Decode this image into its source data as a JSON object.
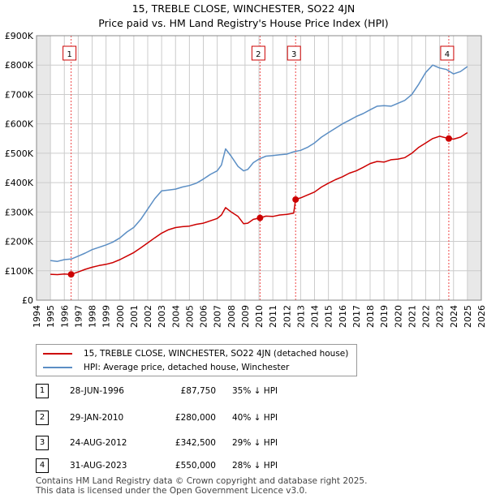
{
  "chart_data": {
    "type": "line",
    "title": "15, TREBLE CLOSE, WINCHESTER, SO22 4JN",
    "subtitle": "Price paid vs. HM Land Registry's House Price Index (HPI)",
    "xlabel": "",
    "ylabel": "",
    "xlim": [
      1994,
      2026
    ],
    "ylim": [
      0,
      900000
    ],
    "y_ticks": [
      0,
      100000,
      200000,
      300000,
      400000,
      500000,
      600000,
      700000,
      800000,
      900000
    ],
    "y_tick_labels": [
      "£0",
      "£100K",
      "£200K",
      "£300K",
      "£400K",
      "£500K",
      "£600K",
      "£700K",
      "£800K",
      "£900K"
    ],
    "x_ticks": [
      1994,
      1995,
      1996,
      1997,
      1998,
      1999,
      2000,
      2001,
      2002,
      2003,
      2004,
      2005,
      2006,
      2007,
      2008,
      2009,
      2010,
      2011,
      2012,
      2013,
      2014,
      2015,
      2016,
      2017,
      2018,
      2019,
      2020,
      2021,
      2022,
      2023,
      2024,
      2025,
      2026
    ],
    "x_tick_labels": [
      "1994",
      "1995",
      "1996",
      "1997",
      "1998",
      "1999",
      "2000",
      "2001",
      "2002",
      "2003",
      "2004",
      "2005",
      "2006",
      "2007",
      "2008",
      "2009",
      "2010",
      "2011",
      "2012",
      "2013",
      "2014",
      "2015",
      "2016",
      "2017",
      "2018",
      "2019",
      "2020",
      "2021",
      "2022",
      "2023",
      "2024",
      "2025",
      "2026"
    ],
    "grid": true,
    "shaded_ranges": [
      [
        1994,
        1995
      ],
      [
        2025.0,
        2026
      ]
    ],
    "series": [
      {
        "name": "15, TREBLE CLOSE, WINCHESTER, SO22 4JN (detached house)",
        "color": "#cc0000",
        "x": [
          1995.0,
          1995.5,
          1996.0,
          1996.49,
          1997.0,
          1997.5,
          1998.0,
          1998.5,
          1999.0,
          1999.5,
          2000.0,
          2000.5,
          2001.0,
          2001.5,
          2002.0,
          2002.5,
          2003.0,
          2003.5,
          2004.0,
          2004.5,
          2005.0,
          2005.5,
          2006.0,
          2006.5,
          2007.0,
          2007.3,
          2007.6,
          2008.0,
          2008.5,
          2008.9,
          2009.2,
          2009.6,
          2010.08,
          2010.5,
          2011.0,
          2011.5,
          2012.0,
          2012.5,
          2012.64,
          2013.0,
          2013.5,
          2014.0,
          2014.5,
          2015.0,
          2015.5,
          2016.0,
          2016.5,
          2017.0,
          2017.5,
          2018.0,
          2018.5,
          2019.0,
          2019.5,
          2020.0,
          2020.5,
          2021.0,
          2021.5,
          2022.0,
          2022.5,
          2023.0,
          2023.66,
          2024.0,
          2024.5,
          2025.0
        ],
        "values": [
          88000,
          87000,
          89000,
          87750,
          96000,
          105000,
          112000,
          118000,
          122000,
          128000,
          138000,
          150000,
          162000,
          178000,
          195000,
          212000,
          228000,
          240000,
          247000,
          250000,
          252000,
          258000,
          262000,
          270000,
          278000,
          290000,
          315000,
          300000,
          285000,
          260000,
          262000,
          275000,
          280000,
          286000,
          285000,
          290000,
          292000,
          296000,
          342500,
          348000,
          358000,
          368000,
          385000,
          398000,
          410000,
          420000,
          432000,
          440000,
          452000,
          465000,
          472000,
          470000,
          478000,
          480000,
          485000,
          500000,
          520000,
          535000,
          550000,
          558000,
          550000,
          548000,
          555000,
          570000
        ]
      },
      {
        "name": "HPI: Average price, detached house, Winchester",
        "color": "#5b8ec4",
        "x": [
          1995.0,
          1995.5,
          1996.0,
          1996.5,
          1997.0,
          1997.5,
          1998.0,
          1998.5,
          1999.0,
          1999.5,
          2000.0,
          2000.5,
          2001.0,
          2001.5,
          2002.0,
          2002.5,
          2003.0,
          2003.5,
          2004.0,
          2004.5,
          2005.0,
          2005.5,
          2006.0,
          2006.5,
          2007.0,
          2007.3,
          2007.6,
          2008.0,
          2008.5,
          2008.9,
          2009.2,
          2009.6,
          2010.0,
          2010.5,
          2011.0,
          2011.5,
          2012.0,
          2012.5,
          2013.0,
          2013.5,
          2014.0,
          2014.5,
          2015.0,
          2015.5,
          2016.0,
          2016.5,
          2017.0,
          2017.5,
          2018.0,
          2018.5,
          2019.0,
          2019.5,
          2020.0,
          2020.5,
          2021.0,
          2021.5,
          2022.0,
          2022.5,
          2023.0,
          2023.5,
          2024.0,
          2024.5,
          2025.0
        ],
        "values": [
          135000,
          132000,
          138000,
          140000,
          150000,
          160000,
          172000,
          180000,
          188000,
          198000,
          212000,
          232000,
          248000,
          275000,
          310000,
          345000,
          372000,
          375000,
          378000,
          385000,
          390000,
          398000,
          412000,
          428000,
          440000,
          460000,
          515000,
          490000,
          455000,
          440000,
          445000,
          468000,
          480000,
          490000,
          492000,
          495000,
          497000,
          505000,
          510000,
          520000,
          535000,
          555000,
          570000,
          585000,
          600000,
          612000,
          625000,
          635000,
          648000,
          660000,
          662000,
          660000,
          670000,
          680000,
          700000,
          735000,
          775000,
          800000,
          790000,
          785000,
          770000,
          778000,
          795000
        ]
      }
    ],
    "annotations": [
      {
        "label": "1",
        "x": 1996.49,
        "price": 87750
      },
      {
        "label": "2",
        "x": 2010.08,
        "price": 280000
      },
      {
        "label": "3",
        "x": 2012.64,
        "price": 342500
      },
      {
        "label": "4",
        "x": 2023.66,
        "price": 550000
      }
    ]
  },
  "legend": {
    "property_label": "15, TREBLE CLOSE, WINCHESTER, SO22 4JN (detached house)",
    "hpi_label": "HPI: Average price, detached house, Winchester",
    "property_color": "#cc0000",
    "hpi_color": "#5b8ec4"
  },
  "transactions": [
    {
      "num": "1",
      "date": "28-JUN-1996",
      "price": "£87,750",
      "hpi": "35% ↓ HPI"
    },
    {
      "num": "2",
      "date": "29-JAN-2010",
      "price": "£280,000",
      "hpi": "40% ↓ HPI"
    },
    {
      "num": "3",
      "date": "24-AUG-2012",
      "price": "£342,500",
      "hpi": "29% ↓ HPI"
    },
    {
      "num": "4",
      "date": "31-AUG-2023",
      "price": "£550,000",
      "hpi": "28% ↓ HPI"
    }
  ],
  "footer": {
    "line1": "Contains HM Land Registry data © Crown copyright and database right 2025.",
    "line2": "This data is licensed under the Open Government Licence v3.0."
  }
}
